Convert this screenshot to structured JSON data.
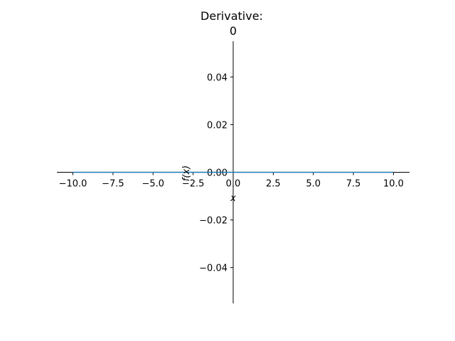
{
  "chart_data": {
    "type": "line",
    "title": "Derivative:",
    "subtitle": "0",
    "xlabel": "x",
    "ylabel": "f(x)",
    "xlim": [
      -11,
      11
    ],
    "ylim": [
      -0.055,
      0.055
    ],
    "x_ticks": [
      -10.0,
      -7.5,
      -5.0,
      -2.5,
      0.0,
      2.5,
      5.0,
      7.5,
      10.0
    ],
    "x_tick_labels": [
      "−10.0",
      "−7.5",
      "−5.0",
      "−2.5",
      "0.0",
      "2.5",
      "5.0",
      "7.5",
      "10.0"
    ],
    "y_ticks": [
      -0.04,
      -0.02,
      0.0,
      0.02,
      0.04
    ],
    "y_tick_labels": [
      "−0.04",
      "−0.02",
      "0.00",
      "0.02",
      "0.04"
    ],
    "grid": false,
    "series": [
      {
        "x": [
          -10,
          10
        ],
        "y": [
          0,
          0
        ],
        "color": "#1f77b4"
      }
    ]
  }
}
